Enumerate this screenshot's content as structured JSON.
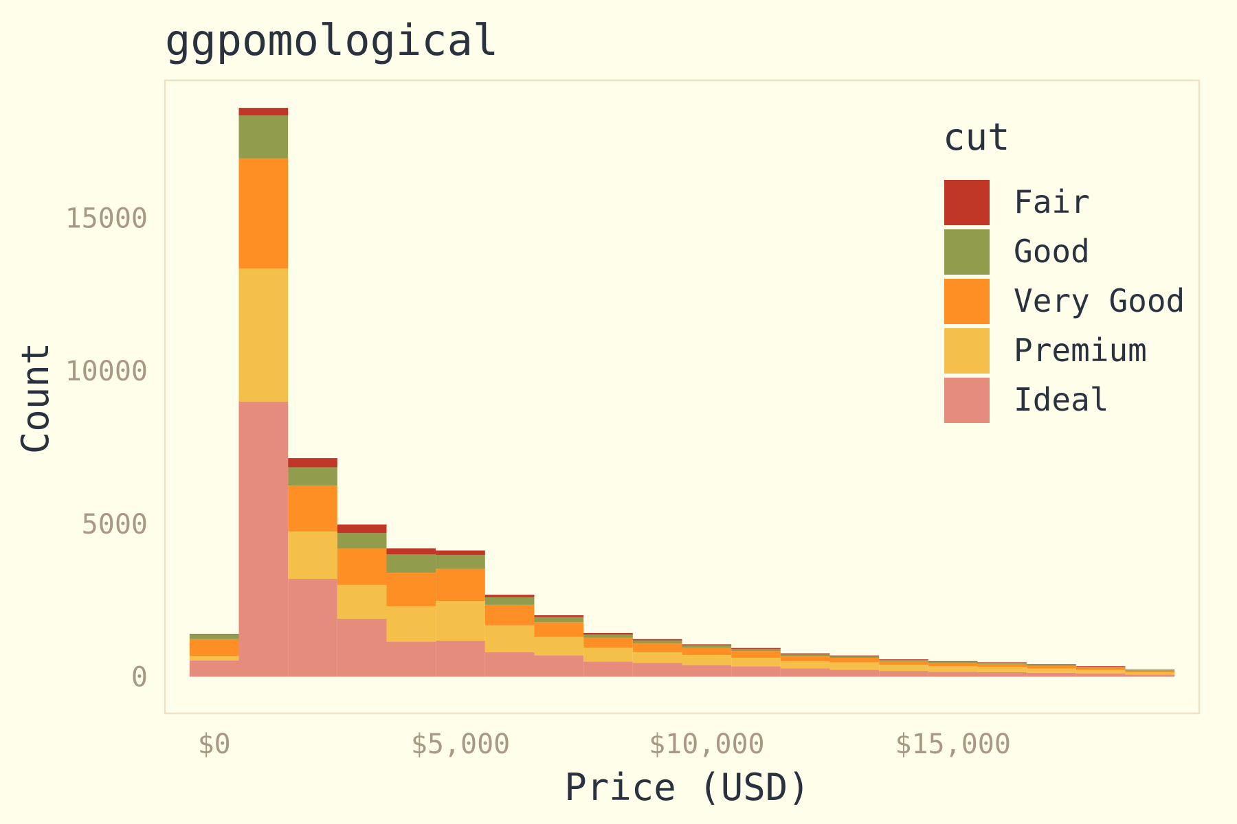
{
  "chart_data": {
    "type": "bar",
    "stacked": true,
    "title": "ggpomological",
    "xlabel": "Price (USD)",
    "ylabel": "Count",
    "xlim": [
      -1000,
      20000
    ],
    "ylim": [
      -1200,
      19500
    ],
    "x_ticks": [
      {
        "value": 0,
        "label": "$0"
      },
      {
        "value": 5000,
        "label": "$5,000"
      },
      {
        "value": 10000,
        "label": "$10,000"
      },
      {
        "value": 15000,
        "label": "$15,000"
      }
    ],
    "y_ticks": [
      {
        "value": 0,
        "label": "0"
      },
      {
        "value": 5000,
        "label": "5000"
      },
      {
        "value": 10000,
        "label": "10000"
      },
      {
        "value": 15000,
        "label": "15000"
      }
    ],
    "grid": false,
    "legend": {
      "title": "cut",
      "placement": "top-right"
    },
    "bin_width": 1000,
    "x": [
      0,
      1000,
      2000,
      3000,
      4000,
      5000,
      6000,
      7000,
      8000,
      9000,
      10000,
      11000,
      12000,
      13000,
      14000,
      15000,
      16000,
      17000,
      18000,
      19000
    ],
    "series": [
      {
        "name": "Ideal",
        "color": "#e68c7c",
        "values": [
          530,
          9000,
          3200,
          1900,
          1150,
          1180,
          800,
          700,
          500,
          450,
          380,
          340,
          270,
          230,
          190,
          160,
          150,
          130,
          110,
          70
        ]
      },
      {
        "name": "Premium",
        "color": "#f5c04a",
        "values": [
          150,
          4350,
          1550,
          1100,
          1150,
          1300,
          880,
          600,
          450,
          370,
          330,
          280,
          230,
          240,
          200,
          180,
          170,
          140,
          110,
          70
        ]
      },
      {
        "name": "Very Good",
        "color": "#fd8f24",
        "values": [
          550,
          3600,
          1500,
          1200,
          1100,
          1050,
          670,
          480,
          330,
          280,
          240,
          220,
          180,
          150,
          120,
          110,
          100,
          90,
          80,
          60
        ]
      },
      {
        "name": "Good",
        "color": "#919c4c",
        "values": [
          150,
          1400,
          600,
          500,
          600,
          450,
          250,
          170,
          100,
          90,
          80,
          70,
          60,
          50,
          40,
          40,
          35,
          30,
          25,
          20
        ]
      },
      {
        "name": "Fair",
        "color": "#c03728",
        "values": [
          20,
          250,
          300,
          280,
          200,
          150,
          80,
          60,
          50,
          40,
          30,
          30,
          25,
          25,
          20,
          20,
          20,
          20,
          20,
          15
        ]
      }
    ]
  },
  "colors": {
    "background": "#fffeea",
    "panel_border": "#efe1c6",
    "text": "#2b323f",
    "tick_text": "#a89985"
  }
}
